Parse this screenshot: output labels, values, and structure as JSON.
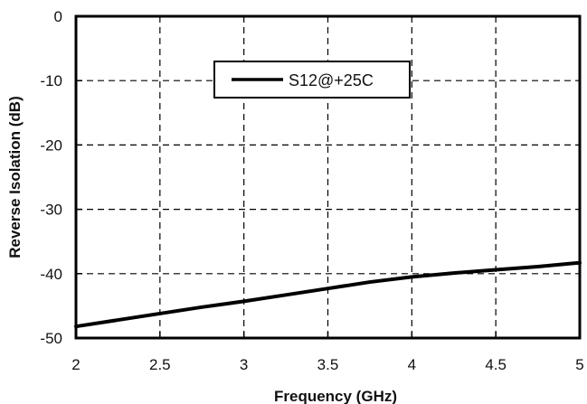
{
  "chart_data": {
    "type": "line",
    "title": "",
    "xlabel": "Frequency (GHz)",
    "ylabel": "Reverse Isolation (dB)",
    "xlim": [
      2,
      5
    ],
    "ylim": [
      -50,
      0
    ],
    "xticks": [
      2,
      2.5,
      3,
      3.5,
      4,
      4.5,
      5
    ],
    "yticks": [
      0,
      -10,
      -20,
      -30,
      -40,
      -50
    ],
    "x_tick_labels": [
      "2",
      "2.5",
      "3",
      "3.5",
      "4",
      "4.5",
      "5"
    ],
    "y_tick_labels": [
      "0",
      "-10",
      "-20",
      "-30",
      "-40",
      "-50"
    ],
    "grid": true,
    "grid_style": "dashed",
    "legend_position": "top-center",
    "series": [
      {
        "name": "S12@+25C",
        "color": "#000000",
        "x": [
          2.0,
          2.25,
          2.5,
          2.75,
          3.0,
          3.25,
          3.5,
          3.75,
          4.0,
          4.25,
          4.5,
          4.75,
          5.0
        ],
        "y": [
          -48.2,
          -47.2,
          -46.2,
          -45.2,
          -44.3,
          -43.3,
          -42.3,
          -41.3,
          -40.5,
          -39.9,
          -39.4,
          -38.9,
          -38.3
        ]
      }
    ]
  }
}
